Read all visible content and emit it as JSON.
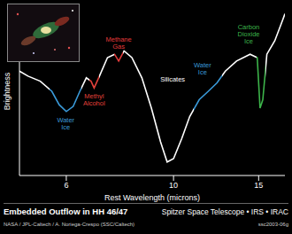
{
  "chart_data": {
    "type": "line",
    "title": "Embedded Outflow in HH 46/47",
    "subtitle": "Spitzer Space Telescope • IRS • IRAC",
    "credit": "NASA / JPL-Caltech / A. Noriega-Crespo (SSC/Caltech)",
    "code": "ssc2003-06g",
    "x_label": "Rest Wavelength (microns)",
    "y_label": "Brightness",
    "x": [
      4.8,
      5.0,
      5.3,
      5.6,
      5.8,
      6.0,
      6.2,
      6.4,
      6.6,
      6.75,
      6.85,
      7.0,
      7.3,
      7.55,
      7.7,
      7.9,
      8.2,
      8.6,
      9.0,
      9.4,
      9.7,
      10.0,
      10.4,
      10.8,
      11.3,
      11.8,
      12.3,
      12.8,
      13.5,
      14.4,
      14.9,
      15.1,
      15.3,
      15.6,
      16.2,
      16.8,
      17.0
    ],
    "values": [
      62,
      59,
      56,
      50,
      42,
      38,
      41,
      50,
      58,
      56,
      52,
      58,
      70,
      72,
      68,
      74,
      70,
      58,
      40,
      20,
      8,
      10,
      22,
      35,
      45,
      50,
      55,
      62,
      68,
      72,
      70,
      40,
      45,
      72,
      80,
      92,
      96
    ],
    "color": "#ffffff",
    "xlim": [
      4.8,
      17
    ],
    "xticks": [
      6,
      10,
      15
    ],
    "ylim": [
      0,
      100
    ],
    "log": "x",
    "tick_labels": "x",
    "annotations": [
      {
        "text": "Water Ice",
        "color": "#3a9ad9",
        "from": 5.55,
        "to": 6.45
      },
      {
        "text": "Methyl Alcohol",
        "color": "#e0403a",
        "from": 6.7,
        "to": 7.0
      },
      {
        "text": "Methane Gas",
        "color": "#e23b3b",
        "from": 7.55,
        "to": 7.85
      },
      {
        "text": "Silicates",
        "color": "#ffffff",
        "from": 8.3,
        "to": 9.6
      },
      {
        "text": "Water Ice",
        "color": "#3a9ad9",
        "from": 11.0,
        "to": 12.6
      },
      {
        "text": "Carbon Dioxide Ice",
        "color": "#3cb44a",
        "from": 14.85,
        "to": 15.5
      }
    ]
  }
}
